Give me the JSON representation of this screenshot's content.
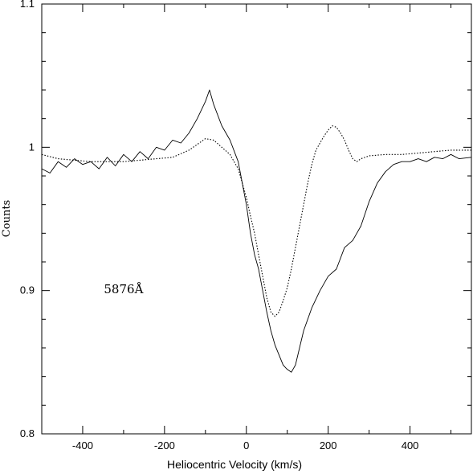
{
  "chart_data": {
    "type": "line",
    "title": "",
    "xlabel": "Heliocentric Velocity (km/s)",
    "ylabel": "Counts",
    "xlim": [
      -500,
      550
    ],
    "ylim": [
      0.8,
      1.1
    ],
    "x_ticks": [
      -400,
      -200,
      0,
      200,
      400
    ],
    "x_tick_labels": [
      "-400",
      "-200",
      "0",
      "200",
      "400"
    ],
    "y_ticks": [
      0.8,
      0.9,
      1.0,
      1.1
    ],
    "y_tick_labels": [
      "0.8",
      "0.9",
      "1",
      "1.1"
    ],
    "grid": false,
    "legend": "none",
    "annotations": [
      {
        "text": "5876Å",
        "x": -300,
        "y": 0.898
      }
    ],
    "series": [
      {
        "style": "solid",
        "x": [
          -500,
          -480,
          -460,
          -440,
          -420,
          -400,
          -380,
          -360,
          -340,
          -320,
          -300,
          -280,
          -260,
          -240,
          -220,
          -200,
          -180,
          -160,
          -140,
          -120,
          -100,
          -90,
          -80,
          -60,
          -40,
          -20,
          0,
          10,
          20,
          30,
          40,
          50,
          60,
          70,
          80,
          90,
          100,
          110,
          120,
          130,
          140,
          160,
          180,
          200,
          220,
          240,
          260,
          280,
          300,
          320,
          340,
          360,
          380,
          400,
          420,
          440,
          460,
          480,
          500,
          520,
          550
        ],
        "y": [
          0.985,
          0.982,
          0.99,
          0.986,
          0.992,
          0.988,
          0.99,
          0.985,
          0.993,
          0.987,
          0.995,
          0.99,
          0.997,
          0.992,
          1.0,
          0.998,
          1.005,
          1.003,
          1.01,
          1.02,
          1.032,
          1.04,
          1.03,
          1.015,
          1.005,
          0.99,
          0.96,
          0.94,
          0.925,
          0.915,
          0.9,
          0.885,
          0.872,
          0.862,
          0.855,
          0.848,
          0.845,
          0.843,
          0.848,
          0.86,
          0.872,
          0.888,
          0.9,
          0.91,
          0.915,
          0.93,
          0.935,
          0.945,
          0.962,
          0.975,
          0.983,
          0.988,
          0.99,
          0.99,
          0.992,
          0.99,
          0.993,
          0.992,
          0.995,
          0.992,
          0.993
        ]
      },
      {
        "style": "dotted",
        "x": [
          -500,
          -460,
          -420,
          -380,
          -340,
          -300,
          -260,
          -220,
          -180,
          -140,
          -120,
          -100,
          -80,
          -60,
          -40,
          -20,
          0,
          10,
          20,
          30,
          40,
          50,
          60,
          70,
          80,
          90,
          100,
          110,
          120,
          130,
          140,
          150,
          160,
          170,
          180,
          190,
          200,
          210,
          220,
          230,
          240,
          250,
          260,
          270,
          280,
          300,
          340,
          380,
          420,
          460,
          500,
          550
        ],
        "y": [
          0.995,
          0.992,
          0.991,
          0.99,
          0.99,
          0.99,
          0.991,
          0.992,
          0.993,
          0.998,
          1.002,
          1.006,
          1.005,
          1.0,
          0.995,
          0.985,
          0.965,
          0.952,
          0.94,
          0.925,
          0.91,
          0.895,
          0.885,
          0.882,
          0.885,
          0.893,
          0.902,
          0.915,
          0.93,
          0.945,
          0.96,
          0.975,
          0.988,
          0.998,
          1.003,
          1.008,
          1.012,
          1.015,
          1.014,
          1.01,
          1.005,
          0.998,
          0.992,
          0.99,
          0.992,
          0.994,
          0.995,
          0.995,
          0.996,
          0.997,
          0.998,
          0.998
        ]
      }
    ]
  }
}
